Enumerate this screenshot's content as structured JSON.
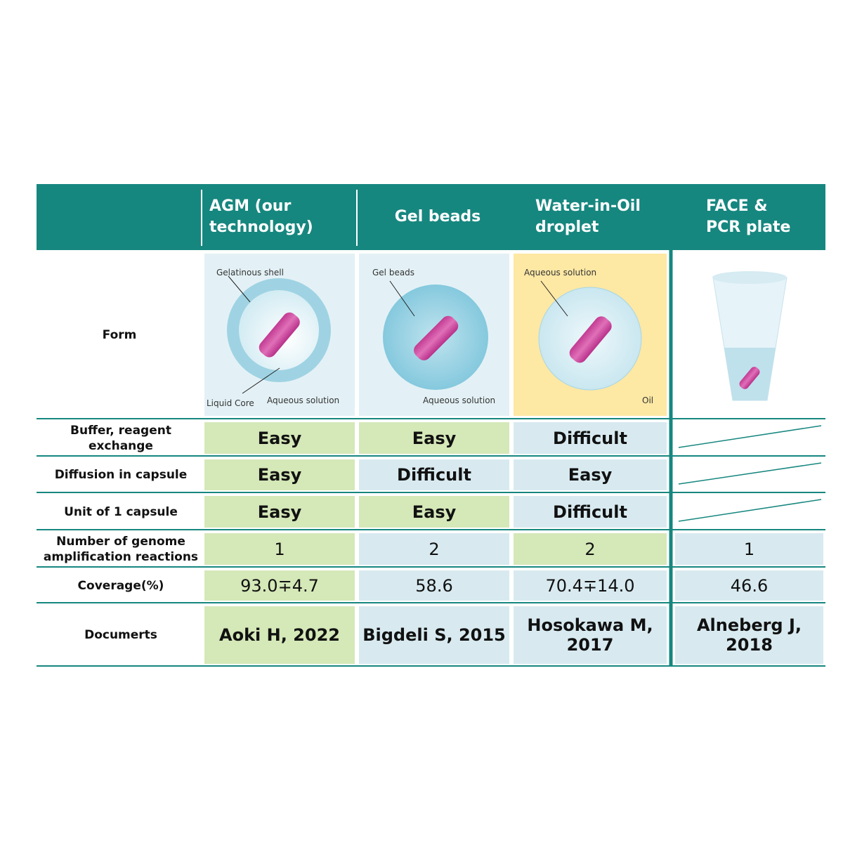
{
  "header": {
    "columns": [
      "AGM (our technology)",
      "Gel beads",
      "Water-in-Oil droplet",
      "FACE & PCR plate"
    ]
  },
  "form": {
    "label": "Form",
    "agm": {
      "shell": "Gelatinous shell",
      "core": "Liquid Core",
      "solution": "Aqueous solution"
    },
    "gel": {
      "beads": "Gel beads",
      "solution": "Aqueous solution"
    },
    "droplet": {
      "solution": "Aqueous solution",
      "oil": "Oil"
    }
  },
  "rows": [
    {
      "label": "Buffer, reagent exchange",
      "cells": [
        "Easy",
        "Easy",
        "Difficult"
      ]
    },
    {
      "label": "Diffusion in capsule",
      "cells": [
        "Easy",
        "Difficult",
        "Easy"
      ]
    },
    {
      "label": "Unit of 1 capsule",
      "cells": [
        "Easy",
        "Easy",
        "Difficult"
      ]
    },
    {
      "label": "Number of genome amplification reactions",
      "cells": [
        "1",
        "2",
        "2",
        "1"
      ]
    },
    {
      "label": "Coverage(%)",
      "cells": [
        "93.0∓4.7",
        "58.6",
        "70.4∓14.0",
        "46.6"
      ]
    },
    {
      "label": "Documerts",
      "cells": [
        "Aoki H, 2022",
        "Bigdeli S, 2015",
        "Hosokawa M, 2017",
        "Alneberg J, 2018"
      ]
    }
  ]
}
